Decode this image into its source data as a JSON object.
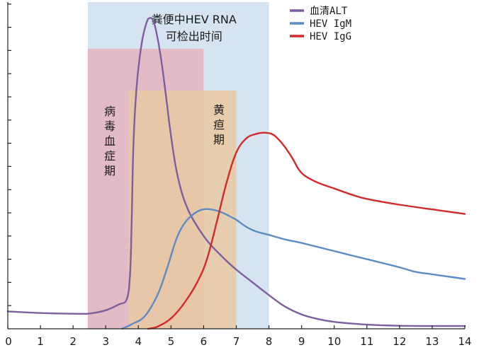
{
  "chart_data": {
    "type": "area",
    "title": "",
    "xlabel": "",
    "ylabel": "",
    "xlim": [
      0,
      14
    ],
    "x_ticks": [
      0,
      1,
      2,
      3,
      4,
      5,
      6,
      7,
      8,
      9,
      10,
      11,
      12,
      13,
      14
    ],
    "x_tick_labels": [
      "0",
      "1",
      "2",
      "3",
      "4",
      "5",
      "6",
      "7",
      "8",
      "9",
      "10",
      "11",
      "12",
      "13",
      "14"
    ],
    "y_tick_count": 14,
    "grid": false,
    "legend_position": "top-right",
    "periods": [
      {
        "label": "粪便中HEV RNA 可检出时间",
        "label_lines": [
          "粪便中HEV RNA",
          "可检出时间"
        ],
        "x_start": 2.45,
        "x_end": 8.0,
        "color": "#d6e4f1"
      },
      {
        "label": "病毒血症期",
        "label_lines": [
          "病",
          "毒",
          "血",
          "症",
          "期"
        ],
        "x_start": 2.45,
        "x_end": 6.0,
        "color": "#e5b4bf"
      },
      {
        "label": "黄疸期",
        "label_lines": [
          "黄",
          "疸",
          "期"
        ],
        "x_start": 3.7,
        "x_end": 7.0,
        "color": "#e9c9a2"
      }
    ],
    "series": [
      {
        "name": "血清ALT",
        "color": "#7d5e9e",
        "x": [
          0,
          1,
          2,
          2.5,
          3,
          3.4,
          3.65,
          3.75,
          3.8,
          3.85,
          3.95,
          4.1,
          4.25,
          4.35,
          4.45,
          4.55,
          4.7,
          4.85,
          5.0,
          5.2,
          5.5,
          6.0,
          6.5,
          7.0,
          7.5,
          8.0,
          8.5,
          9.0,
          9.5,
          10,
          11,
          12,
          13,
          14
        ],
        "y": [
          0.75,
          0.68,
          0.65,
          0.66,
          0.8,
          1.05,
          1.3,
          2.5,
          5.0,
          8.0,
          10.5,
          12.3,
          13.2,
          13.4,
          13.3,
          12.8,
          11.6,
          10.0,
          8.3,
          6.6,
          5.2,
          4.0,
          3.2,
          2.55,
          2.0,
          1.45,
          0.95,
          0.62,
          0.42,
          0.3,
          0.18,
          0.13,
          0.12,
          0.12
        ]
      },
      {
        "name": "HEV IgM",
        "color": "#5b8cc4",
        "x": [
          3.5,
          3.8,
          4.2,
          4.6,
          4.9,
          5.2,
          5.5,
          5.8,
          6.0,
          6.2,
          6.5,
          6.8,
          7.0,
          7.3,
          7.6,
          8.0,
          8.5,
          9.0,
          10,
          11,
          12,
          12.5,
          13,
          14
        ],
        "y": [
          0.0,
          0.2,
          0.55,
          1.5,
          2.7,
          4.0,
          4.7,
          5.05,
          5.15,
          5.15,
          5.05,
          4.85,
          4.7,
          4.4,
          4.2,
          4.05,
          3.85,
          3.7,
          3.35,
          3.0,
          2.65,
          2.45,
          2.35,
          2.15
        ]
      },
      {
        "name": "HEV IgG",
        "color": "#d22a2a",
        "x": [
          4.3,
          4.6,
          5.0,
          5.4,
          5.8,
          6.1,
          6.4,
          6.7,
          7.0,
          7.3,
          7.6,
          7.9,
          8.15,
          8.4,
          8.7,
          8.9,
          9.1,
          9.5,
          10,
          10.5,
          11,
          12,
          13,
          14
        ],
        "y": [
          0.0,
          0.1,
          0.45,
          1.1,
          2.0,
          3.0,
          4.6,
          6.3,
          7.6,
          8.2,
          8.4,
          8.45,
          8.35,
          8.0,
          7.4,
          6.9,
          6.6,
          6.3,
          6.05,
          5.8,
          5.6,
          5.35,
          5.15,
          4.95
        ]
      }
    ]
  }
}
